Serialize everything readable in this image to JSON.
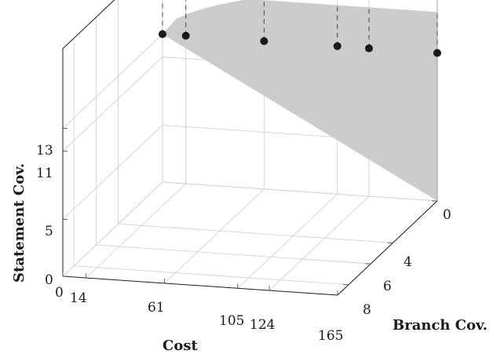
{
  "chart_data": {
    "type": "scatter",
    "title": "",
    "xlabel": "Cost",
    "ylabel": "Branch Cov.",
    "zlabel": "Statement Cov.",
    "x_ticks": [
      "0",
      "14",
      "61",
      "105",
      "124",
      "165"
    ],
    "y_ticks": [
      "0",
      "4",
      "6",
      "8"
    ],
    "z_ticks": [
      "0",
      "5",
      "11",
      "13"
    ],
    "xlim": [
      0,
      165
    ],
    "ylim": [
      0,
      9
    ],
    "zlim": [
      0,
      20
    ],
    "grid": true,
    "points": [
      {
        "x": 0,
        "y": 0,
        "z": 13
      },
      {
        "x": 14,
        "y": 0,
        "z": 13
      },
      {
        "x": 61,
        "y": 0,
        "z": 13
      },
      {
        "x": 105,
        "y": 0,
        "z": 13
      },
      {
        "x": 124,
        "y": 0,
        "z": 13
      },
      {
        "x": 165,
        "y": 0,
        "z": 13
      }
    ],
    "surface_color": "#cccccc",
    "point_color": "#1a1a1a"
  }
}
